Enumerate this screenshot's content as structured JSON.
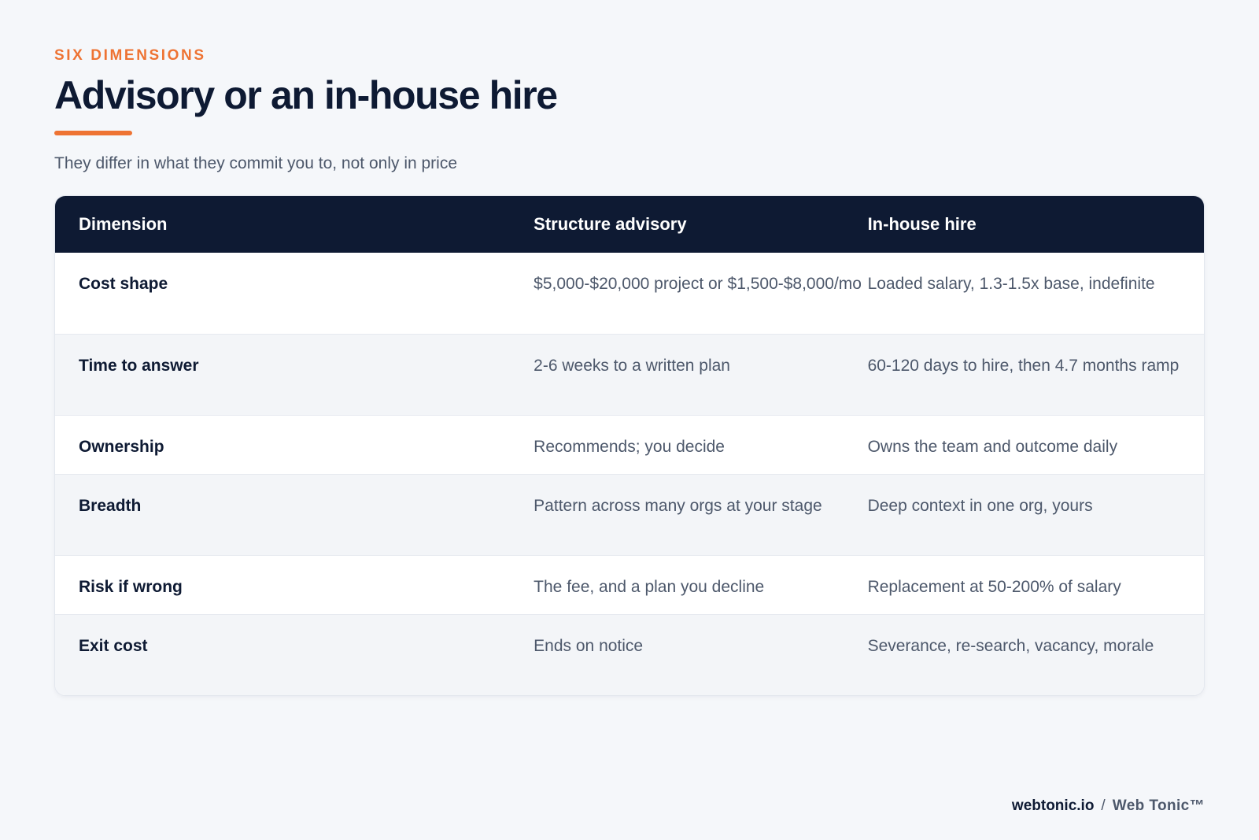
{
  "header": {
    "eyebrow": "SIX DIMENSIONS",
    "title": "Advisory or an in-house hire",
    "subtitle": "They differ in what they commit you to, not only in price"
  },
  "table": {
    "columns": [
      "Dimension",
      "Structure advisory",
      "In-house hire"
    ],
    "rows": [
      {
        "dimension": "Cost shape",
        "advisory": "$5,000-$20,000 project or $1,500-$8,000/mo",
        "inhouse": "Loaded salary, 1.3-1.5x base, indefinite"
      },
      {
        "dimension": "Time to answer",
        "advisory": "2-6 weeks to a written plan",
        "inhouse": "60-120 days to hire, then 4.7 months ramp"
      },
      {
        "dimension": "Ownership",
        "advisory": "Recommends; you decide",
        "inhouse": "Owns the team and outcome daily"
      },
      {
        "dimension": "Breadth",
        "advisory": "Pattern across many orgs at your stage",
        "inhouse": "Deep context in one org, yours"
      },
      {
        "dimension": "Risk if wrong",
        "advisory": "The fee, and a plan you decline",
        "inhouse": "Replacement at 50-200% of salary"
      },
      {
        "dimension": "Exit cost",
        "advisory": "Ends on notice",
        "inhouse": "Severance, re-search, vacancy, morale"
      }
    ]
  },
  "footer": {
    "brand": "webtonic.io",
    "separator": "/",
    "company": "Web Tonic™"
  },
  "colors": {
    "accent": "#ee7333",
    "navy": "#0e1a33",
    "muted_text": "#4d586b",
    "background": "#f5f7fa"
  }
}
